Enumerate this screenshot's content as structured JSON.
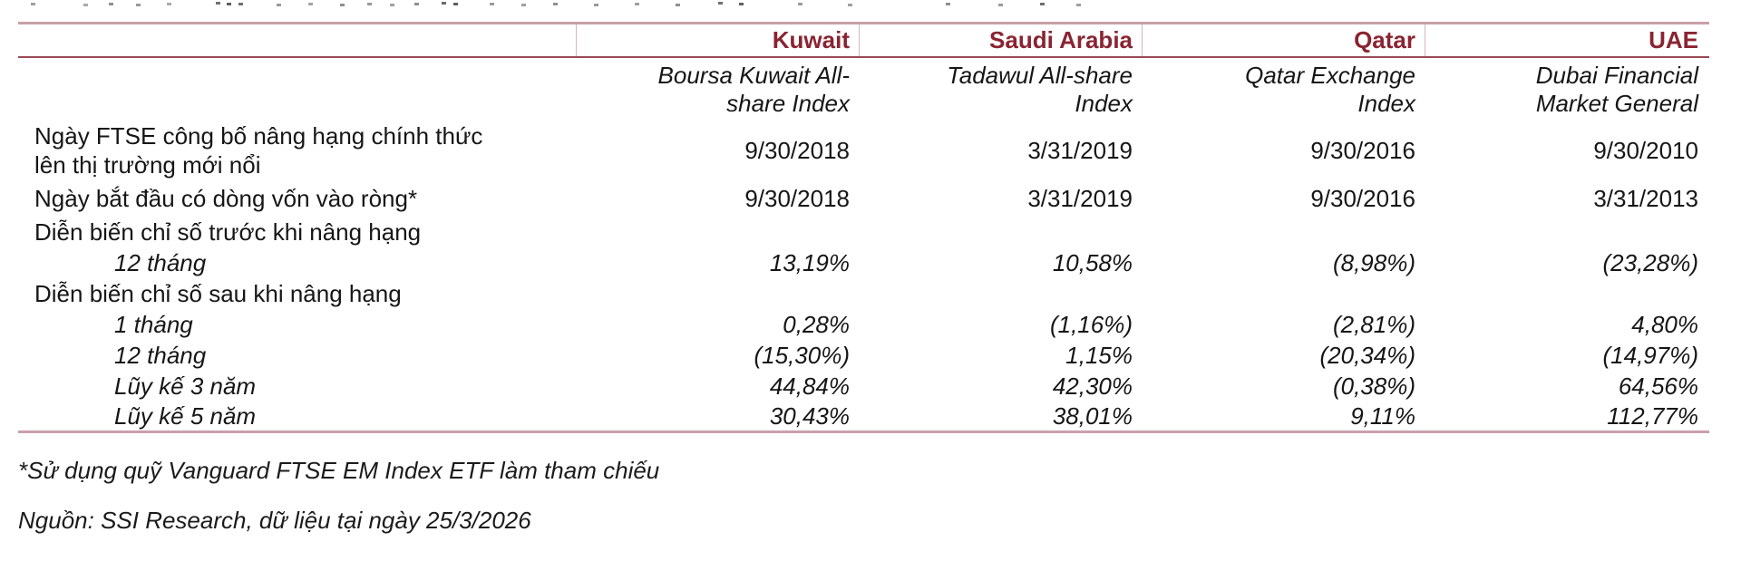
{
  "document": {
    "table": {
      "columns": [
        {
          "country": "Kuwait",
          "index_name": "Boursa Kuwait All-share Index"
        },
        {
          "country": "Saudi Arabia",
          "index_name": "Tadawul All-share Index"
        },
        {
          "country": "Qatar",
          "index_name": "Qatar Exchange Index"
        },
        {
          "country": "UAE",
          "index_name": "Dubai Financial Market General"
        }
      ],
      "rows": [
        {
          "label": "Ngày FTSE công bố nâng hạng chính thức lên thị trường mới nổi",
          "values": [
            "9/30/2018",
            "3/31/2019",
            "9/30/2016",
            "9/30/2010"
          ]
        },
        {
          "label": "Ngày bắt đầu có dòng vốn vào ròng*",
          "values": [
            "9/30/2018",
            "3/31/2019",
            "9/30/2016",
            "3/31/2013"
          ]
        },
        {
          "label": "Diễn biến chỉ số trước khi nâng hạng"
        },
        {
          "label": "12 tháng",
          "values": [
            "13,19%",
            "10,58%",
            "(8,98%)",
            "(23,28%)"
          ]
        },
        {
          "label": "Diễn biến chỉ số sau khi nâng hạng"
        },
        {
          "label": "1 tháng",
          "values": [
            "0,28%",
            "(1,16%)",
            "(2,81%)",
            "4,80%"
          ]
        },
        {
          "label": "12 tháng",
          "values": [
            "(15,30%)",
            "1,15%",
            "(20,34%)",
            "(14,97%)"
          ]
        },
        {
          "label": "Lũy kế 3 năm",
          "values": [
            "44,84%",
            "42,30%",
            "(0,38%)",
            "64,56%"
          ]
        },
        {
          "label": "Lũy kế 5 năm",
          "values": [
            "30,43%",
            "38,01%",
            "9,11%",
            "112,77%"
          ]
        }
      ]
    },
    "footnote": "*Sử dụng quỹ Vanguard FTSE EM Index ETF làm tham chiếu",
    "source": "Nguồn: SSI Research, dữ liệu tại ngày 25/3/2026"
  },
  "colors": {
    "accent_maroon": "#8a2432",
    "line_light": "#c9a0a8",
    "line_dark": "#9a4a55",
    "separator": "#d6b6bc",
    "text": "#161616"
  }
}
